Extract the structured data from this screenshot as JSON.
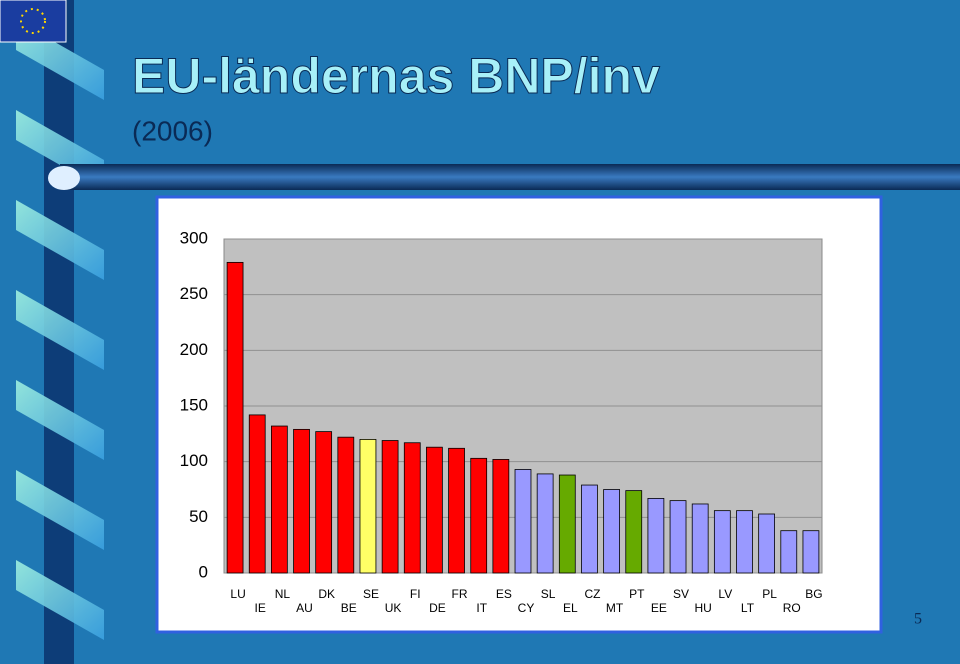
{
  "chart_data": {
    "type": "bar",
    "title": "EU-ländernas BNP/inv",
    "subtitle": "(2006)",
    "categories": [
      "LU",
      "IE",
      "NL",
      "AU",
      "DK",
      "BE",
      "SE",
      "UK",
      "FI",
      "DE",
      "FR",
      "IT",
      "ES",
      "CY",
      "SL",
      "EL",
      "CZ",
      "MT",
      "PT",
      "EE",
      "SV",
      "HU",
      "LV",
      "LT",
      "PL",
      "RO",
      "BG"
    ],
    "values": [
      279,
      142,
      132,
      129,
      127,
      122,
      120,
      119,
      117,
      113,
      112,
      103,
      102,
      93,
      89,
      88,
      79,
      75,
      74,
      67,
      65,
      62,
      56,
      56,
      53,
      38,
      38
    ],
    "colors": [
      "#ff0000",
      "#ff0000",
      "#ff0000",
      "#ff0000",
      "#ff0000",
      "#ff0000",
      "#ffff66",
      "#ff0000",
      "#ff0000",
      "#ff0000",
      "#ff0000",
      "#ff0000",
      "#ff0000",
      "#9999ff",
      "#9999ff",
      "#66aa00",
      "#9999ff",
      "#9999ff",
      "#66aa00",
      "#9999ff",
      "#9999ff",
      "#9999ff",
      "#9999ff",
      "#9999ff",
      "#9999ff",
      "#9999ff",
      "#9999ff"
    ],
    "ylim": [
      0,
      300
    ],
    "yticks": [
      0,
      50,
      100,
      150,
      200,
      250,
      300
    ],
    "grid": true
  },
  "page_number": "5"
}
